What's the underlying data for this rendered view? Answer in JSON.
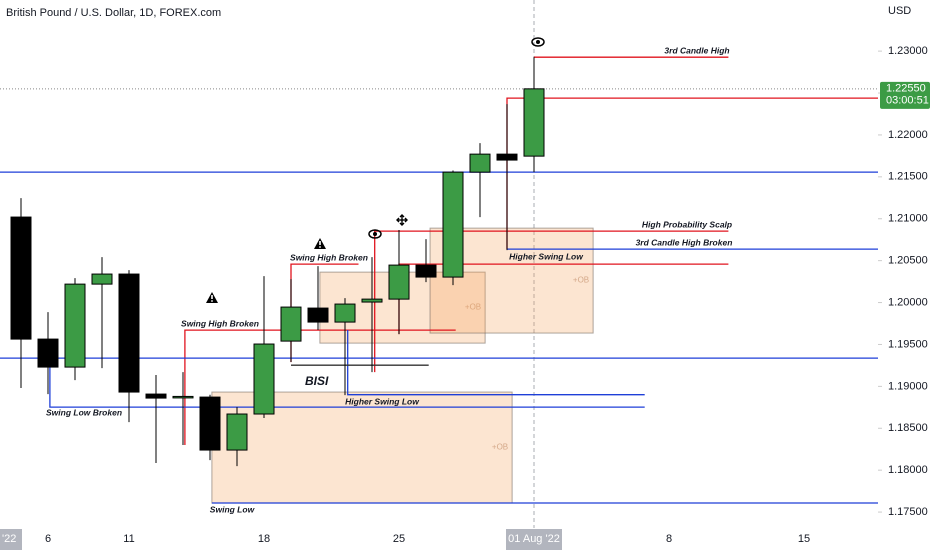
{
  "chart_data": {
    "type": "candlestick",
    "title": "British Pound / U.S. Dollar, 1D, FOREX.com",
    "currency": "USD",
    "categories": [
      null,
      "6",
      null,
      null,
      "11",
      null,
      null,
      null,
      null,
      "18",
      null,
      null,
      null,
      null,
      "25",
      null,
      null,
      null,
      null,
      "Aug",
      null,
      null,
      null,
      null,
      "8",
      null,
      null,
      null,
      null,
      "15"
    ],
    "open": [
      1.2102,
      1.19564,
      1.1923,
      1.2022,
      1.2034,
      1.18908,
      1.1887,
      1.18872,
      1.1824,
      1.1867,
      1.1954,
      1.19934,
      1.19767,
      1.20006,
      1.20041,
      1.20447,
      1.20304,
      1.21556,
      1.21771,
      1.21747,
      null,
      null,
      null,
      null,
      null,
      null,
      null,
      null,
      null,
      null
    ],
    "high": [
      1.21246,
      1.19886,
      1.20292,
      1.20542,
      1.20387,
      1.19135,
      1.1917,
      1.189,
      1.18753,
      1.20316,
      1.2028,
      1.20435,
      1.20053,
      1.20542,
      1.20865,
      1.20757,
      1.21576,
      1.21902,
      1.22368,
      1.22928,
      null,
      null,
      null,
      null,
      null,
      null,
      null,
      null,
      null,
      null
    ],
    "low": [
      1.1898,
      1.18908,
      1.19075,
      1.19218,
      1.18574,
      1.18085,
      1.183,
      1.1812,
      1.18049,
      1.18622,
      1.1929,
      1.19672,
      1.18896,
      1.1917,
      1.19624,
      1.20244,
      1.20208,
      1.2102,
      1.20626,
      1.21556,
      null,
      null,
      null,
      null,
      null,
      null,
      null,
      null,
      null,
      null
    ],
    "close": [
      1.19564,
      1.1923,
      1.2022,
      1.2034,
      1.18932,
      1.1886,
      1.1888,
      1.1824,
      1.1867,
      1.19505,
      1.19946,
      1.19767,
      1.19982,
      1.20041,
      1.20447,
      1.20304,
      1.21556,
      1.21771,
      1.217,
      1.2255,
      null,
      null,
      null,
      null,
      null,
      null,
      null,
      null,
      null,
      null
    ],
    "up_color": "#3c9b45",
    "down_color": "#000000",
    "ylim": [
      1.1731,
      1.2361
    ],
    "yticks": [
      {
        "value": 1.23,
        "label": "1.23000"
      },
      {
        "value": 1.225,
        "label": "1.22500"
      },
      {
        "value": 1.22,
        "label": "1.22000"
      },
      {
        "value": 1.215,
        "label": "1.21500"
      },
      {
        "value": 1.21,
        "label": "1.21000"
      },
      {
        "value": 1.205,
        "label": "1.20500"
      },
      {
        "value": 1.2,
        "label": "1.20000"
      },
      {
        "value": 1.195,
        "label": "1.19500"
      },
      {
        "value": 1.19,
        "label": "1.19000"
      },
      {
        "value": 1.185,
        "label": "1.18500"
      },
      {
        "value": 1.18,
        "label": "1.18000"
      },
      {
        "value": 1.175,
        "label": "1.17500"
      }
    ],
    "last_price": {
      "value": 1.2255,
      "label": "1.22550"
    },
    "countdown": "03:00:51",
    "crosshair_label": "01 Aug '22",
    "left_date_label": "'22",
    "boxes": [
      {
        "top": 1.18932,
        "bottom": 1.17608,
        "x0": 7.07,
        "x1": 18.19,
        "label": "+OB"
      },
      {
        "top": 1.20363,
        "bottom": 1.19516,
        "x0": 11.07,
        "x1": 17.19,
        "label": "+OB"
      },
      {
        "top": 1.20888,
        "bottom": 1.19636,
        "x0": 15.15,
        "x1": 21.19,
        "label": "+OB"
      }
    ],
    "drawings": [
      {
        "color": "#e0141e",
        "points": [
          [
            19,
            1.22928
          ],
          [
            26.2,
            1.22928
          ]
        ]
      },
      {
        "color": "#e0141e",
        "points": [
          [
            18,
            1.20638
          ],
          [
            18,
            1.2244
          ],
          [
            31.74,
            1.2244
          ]
        ]
      },
      {
        "color": "#e0141e",
        "points": [
          [
            13.1,
            1.1917
          ],
          [
            13.1,
            1.20853
          ],
          [
            26.2,
            1.20853
          ]
        ]
      },
      {
        "color": "#e0141e",
        "points": [
          [
            14,
            1.19624
          ],
          [
            14,
            1.20459
          ],
          [
            26.2,
            1.20459
          ]
        ]
      },
      {
        "color": "#e0141e",
        "points": [
          [
            10,
            1.1929
          ],
          [
            10,
            1.20459
          ],
          [
            12.5,
            1.20459
          ]
        ]
      },
      {
        "color": "#e0141e",
        "points": [
          [
            6.07,
            1.183
          ],
          [
            6.07,
            1.19671
          ],
          [
            16.1,
            1.19671
          ]
        ]
      },
      {
        "color": "#1e3fd8",
        "points": [
          [
            -0.78,
            1.21556
          ],
          [
            31.74,
            1.21556
          ]
        ]
      },
      {
        "color": "#1e3fd8",
        "points": [
          [
            -0.78,
            1.19337
          ],
          [
            31.74,
            1.19337
          ]
        ]
      },
      {
        "color": "#1e3fd8",
        "points": [
          [
            18,
            1.20638
          ],
          [
            31.74,
            1.20638
          ]
        ]
      },
      {
        "color": "#1e3fd8",
        "points": [
          [
            12.1,
            1.19672
          ],
          [
            12.1,
            1.189
          ],
          [
            23.1,
            1.189
          ]
        ]
      },
      {
        "color": "#1e3fd8",
        "points": [
          [
            1.07,
            1.19337
          ],
          [
            1.07,
            1.18753
          ],
          [
            23.1,
            1.18753
          ]
        ]
      },
      {
        "color": "#1e3fd8",
        "points": [
          [
            7.07,
            1.17608
          ],
          [
            31.74,
            1.17608
          ]
        ]
      },
      {
        "color": "#333333",
        "points": [
          [
            10,
            1.19253
          ],
          [
            15.1,
            1.19253
          ]
        ]
      }
    ],
    "annotations": [
      "3rd Candle High",
      "High Probability Scalp",
      "3rd Candle High Broken",
      "Higher Swing Low",
      "Swing High Broken",
      "Swing High Broken",
      "BISI",
      "Higher Swing Low",
      "Swing Low Broken",
      "Swing Low"
    ]
  }
}
